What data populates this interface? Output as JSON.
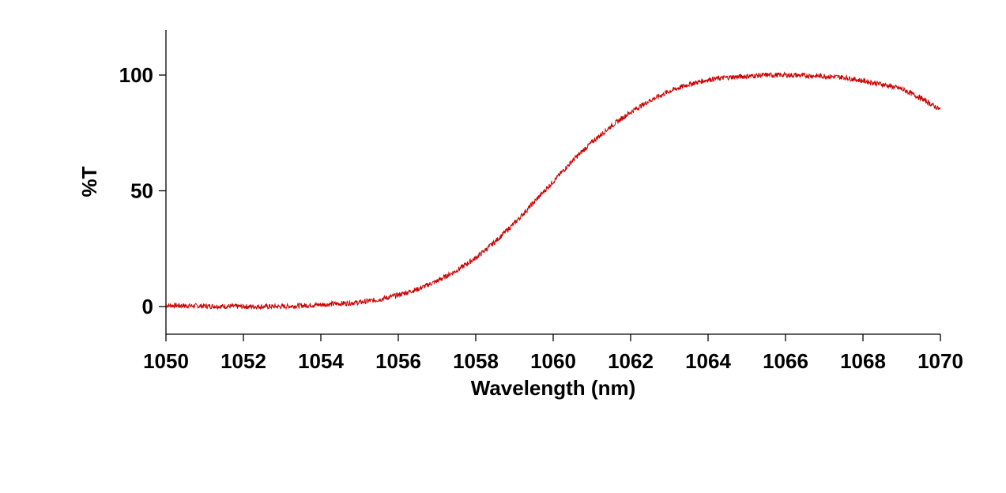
{
  "chart_data": {
    "type": "line",
    "title": "",
    "xlabel": "Wavelength (nm)",
    "ylabel": "%T",
    "xlim": [
      1050,
      1070
    ],
    "ylim": [
      -12,
      120
    ],
    "xticks": [
      1050,
      1052,
      1054,
      1056,
      1058,
      1060,
      1062,
      1064,
      1066,
      1068,
      1070
    ],
    "yticks": [
      0,
      50,
      100
    ],
    "grid": false,
    "legend": "none",
    "colors": {
      "series": "#cc0000",
      "axis": "#000000"
    },
    "series": [
      {
        "x": [
          1050,
          1051,
          1052,
          1053,
          1054,
          1055,
          1055.5,
          1056,
          1056.5,
          1057,
          1057.5,
          1058,
          1058.5,
          1059,
          1059.5,
          1060,
          1060.5,
          1061,
          1061.5,
          1062,
          1062.5,
          1063,
          1063.5,
          1064,
          1064.5,
          1065,
          1065.5,
          1066,
          1066.5,
          1067,
          1067.5,
          1068,
          1068.5,
          1069,
          1069.5,
          1070
        ],
        "y": [
          0.5,
          0.2,
          0,
          0,
          0.8,
          1.8,
          3,
          5,
          7.5,
          11,
          15.5,
          21,
          28,
          36,
          45,
          54,
          63,
          71,
          78,
          84,
          89,
          93,
          96,
          98,
          99,
          99.5,
          100,
          100,
          99.8,
          99.5,
          99,
          97.5,
          96,
          94,
          90,
          85
        ]
      }
    ]
  }
}
